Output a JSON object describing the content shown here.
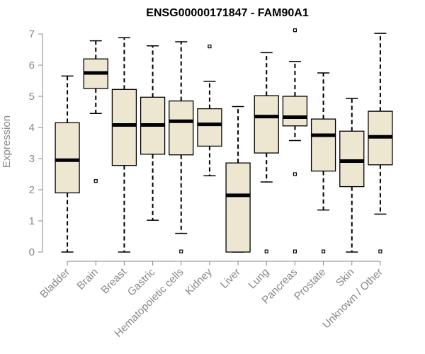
{
  "chart_data": {
    "type": "boxplot",
    "title": "ENSG00000171847 - FAM90A1",
    "xlabel": "",
    "ylabel": "Expression",
    "ylim": [
      0,
      7
    ],
    "yticks": [
      "0",
      "1",
      "2",
      "3",
      "4",
      "5",
      "6",
      "7"
    ],
    "categories": [
      "Bladder",
      "Brain",
      "Breast",
      "Gastric",
      "Hematopoietic cells",
      "Kidney",
      "Liver",
      "Lung",
      "Pancreas",
      "Prostate",
      "Skin",
      "Unknown / Other"
    ],
    "boxes": [
      {
        "name": "Bladder",
        "whisker_low": 0.0,
        "q1": 1.9,
        "median": 2.95,
        "q3": 4.15,
        "whisker_high": 5.65,
        "outliers": []
      },
      {
        "name": "Brain",
        "whisker_low": 4.45,
        "q1": 5.25,
        "median": 5.75,
        "q3": 6.2,
        "whisker_high": 6.78,
        "outliers": [
          2.28
        ]
      },
      {
        "name": "Breast",
        "whisker_low": 0.0,
        "q1": 2.78,
        "median": 4.08,
        "q3": 5.22,
        "whisker_high": 6.88,
        "outliers": []
      },
      {
        "name": "Gastric",
        "whisker_low": 1.02,
        "q1": 3.14,
        "median": 4.08,
        "q3": 4.97,
        "whisker_high": 6.62,
        "outliers": []
      },
      {
        "name": "Hematopoietic cells",
        "whisker_low": 0.6,
        "q1": 3.12,
        "median": 4.2,
        "q3": 4.85,
        "whisker_high": 6.75,
        "outliers": [
          0.02
        ]
      },
      {
        "name": "Kidney",
        "whisker_low": 2.45,
        "q1": 3.4,
        "median": 4.1,
        "q3": 4.6,
        "whisker_high": 5.48,
        "outliers": [
          6.6
        ]
      },
      {
        "name": "Liver",
        "whisker_low": 0.0,
        "q1": 0.0,
        "median": 1.82,
        "q3": 2.86,
        "whisker_high": 4.67,
        "outliers": []
      },
      {
        "name": "Lung",
        "whisker_low": 2.25,
        "q1": 3.18,
        "median": 4.35,
        "q3": 5.02,
        "whisker_high": 6.4,
        "outliers": [
          0.02
        ]
      },
      {
        "name": "Pancreas",
        "whisker_low": 3.58,
        "q1": 4.05,
        "median": 4.33,
        "q3": 5.0,
        "whisker_high": 6.12,
        "outliers": [
          7.12,
          2.5,
          0.02
        ]
      },
      {
        "name": "Prostate",
        "whisker_low": 1.35,
        "q1": 2.6,
        "median": 3.75,
        "q3": 4.27,
        "whisker_high": 5.75,
        "outliers": [
          0.02
        ]
      },
      {
        "name": "Skin",
        "whisker_low": 0.0,
        "q1": 2.1,
        "median": 2.92,
        "q3": 3.88,
        "whisker_high": 4.93,
        "outliers": []
      },
      {
        "name": "Unknown / Other",
        "whisker_low": 1.22,
        "q1": 2.8,
        "median": 3.7,
        "q3": 4.52,
        "whisker_high": 7.02,
        "outliers": [
          0.02
        ]
      }
    ],
    "box_fill": "#ede6d0",
    "grid": false
  }
}
